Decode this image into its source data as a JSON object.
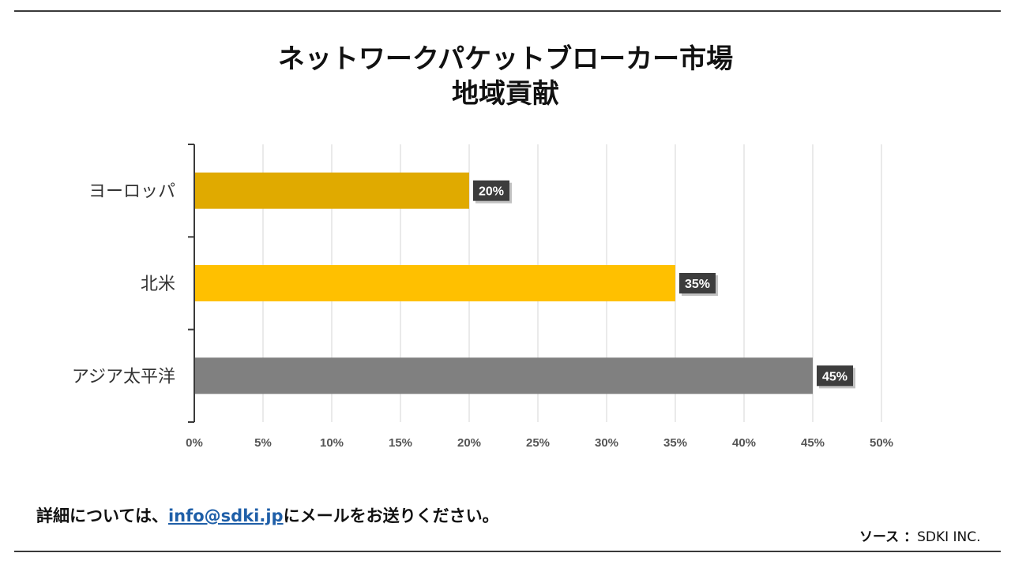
{
  "title": {
    "line1": "ネットワークパケットブローカー市場",
    "line2": "地域貢献"
  },
  "chart_data": {
    "type": "bar",
    "orientation": "horizontal",
    "categories": [
      "ヨーロッパ",
      "北米",
      "アジア太平洋"
    ],
    "values": [
      20,
      35,
      45
    ],
    "data_labels": [
      "20%",
      "35%",
      "45%"
    ],
    "colors": [
      "#e0aa00",
      "#ffc000",
      "#808080"
    ],
    "xlim": [
      0,
      50
    ],
    "xticks": [
      0,
      5,
      10,
      15,
      20,
      25,
      30,
      35,
      40,
      45,
      50
    ],
    "xtick_labels": [
      "0%",
      "5%",
      "10%",
      "15%",
      "20%",
      "25%",
      "30%",
      "35%",
      "40%",
      "45%",
      "50%"
    ],
    "grid": true
  },
  "footer": {
    "contact_prefix": "詳細については、",
    "email": "info@sdki.jp",
    "contact_suffix": "にメールをお送りください。",
    "source_label": "ソース ：",
    "source_value": "SDKI INC."
  }
}
